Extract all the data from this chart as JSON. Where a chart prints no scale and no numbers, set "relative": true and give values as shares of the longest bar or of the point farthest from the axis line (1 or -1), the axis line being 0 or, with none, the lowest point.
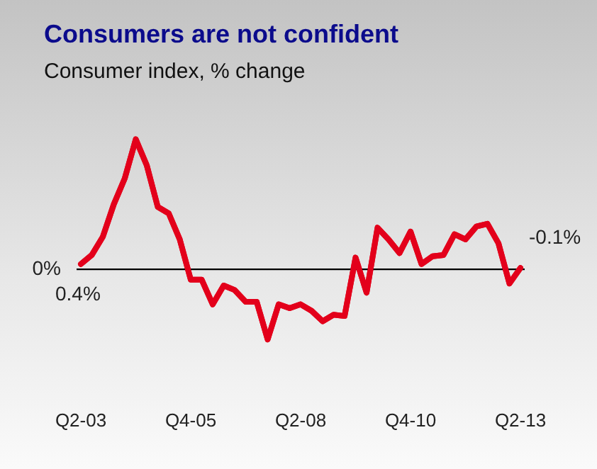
{
  "chart_data": {
    "type": "line",
    "title": "Consumers are not confident",
    "subtitle": "Consumer index, % change",
    "relative": true,
    "categories": [
      "Q2-03",
      null,
      null,
      null,
      null,
      null,
      null,
      null,
      null,
      null,
      "Q4-05",
      null,
      null,
      null,
      null,
      null,
      null,
      null,
      null,
      null,
      "Q2-08",
      null,
      null,
      null,
      null,
      null,
      null,
      null,
      null,
      null,
      "Q4-10",
      null,
      null,
      null,
      null,
      null,
      null,
      null,
      null,
      null,
      "Q2-13"
    ],
    "series": [
      {
        "color": "#e3001b",
        "values": [
          0.04,
          0.11,
          0.25,
          0.5,
          0.7,
          1.0,
          0.8,
          0.48,
          0.43,
          0.23,
          -0.08,
          -0.08,
          -0.27,
          -0.125,
          -0.16,
          -0.25,
          -0.25,
          -0.54,
          -0.27,
          -0.3,
          -0.27,
          -0.32,
          -0.4,
          -0.35,
          -0.36,
          0.09,
          -0.18,
          0.32,
          0.23,
          0.125,
          0.29,
          0.04,
          0.1,
          0.11,
          0.27,
          0.23,
          0.33,
          0.35,
          0.2,
          -0.11,
          0.01
        ]
      }
    ],
    "annotations": [
      "0%",
      "0.4%",
      "-0.1%"
    ],
    "legend": false,
    "marker": "none",
    "line_style": "solid"
  }
}
